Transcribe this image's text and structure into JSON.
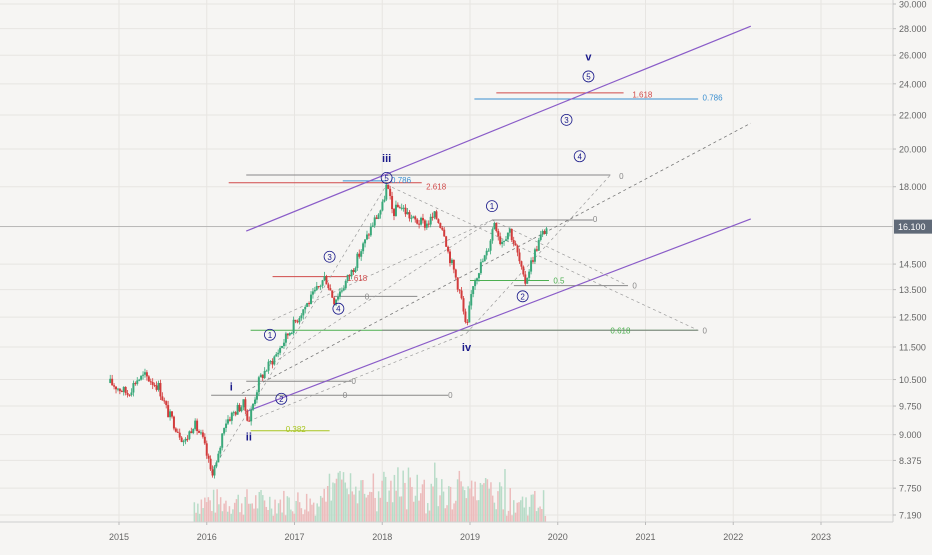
{
  "chart_data": {
    "type": "candlestick",
    "x_axis": {
      "labels": [
        "2015",
        "2016",
        "2017",
        "2018",
        "2019",
        "2020",
        "2021",
        "2022",
        "2023"
      ],
      "range": [
        2014.8,
        2023.3
      ]
    },
    "y_axis": {
      "scale": "log",
      "labels": [
        "30.000",
        "28.000",
        "26.000",
        "24.000",
        "22.000",
        "20.000",
        "18.000",
        "16.100",
        "14.500",
        "13.500",
        "12.500",
        "11.500",
        "10.500",
        "9.750",
        "9.000",
        "8.375",
        "7.750",
        "7.190"
      ],
      "range": [
        7.0,
        30.5
      ],
      "current_price": "16.100"
    },
    "price_path": [
      [
        2014.9,
        10.4
      ],
      [
        2015.1,
        10.1
      ],
      [
        2015.2,
        10.5
      ],
      [
        2015.3,
        10.6
      ],
      [
        2015.45,
        10.3
      ],
      [
        2015.55,
        9.6
      ],
      [
        2015.65,
        9.2
      ],
      [
        2015.75,
        8.8
      ],
      [
        2015.85,
        9.3
      ],
      [
        2015.95,
        8.9
      ],
      [
        2016.05,
        8.1
      ],
      [
        2016.12,
        8.3
      ],
      [
        2016.2,
        9.3
      ],
      [
        2016.28,
        9.5
      ],
      [
        2016.36,
        9.7
      ],
      [
        2016.42,
        9.8
      ],
      [
        2016.48,
        9.35
      ],
      [
        2016.6,
        10.5
      ],
      [
        2016.7,
        10.9
      ],
      [
        2016.8,
        11.3
      ],
      [
        2016.9,
        11.8
      ],
      [
        2017.0,
        12.3
      ],
      [
        2017.1,
        12.8
      ],
      [
        2017.2,
        13.2
      ],
      [
        2017.35,
        14.0
      ],
      [
        2017.45,
        13.1
      ],
      [
        2017.55,
        13.6
      ],
      [
        2017.65,
        14.2
      ],
      [
        2017.8,
        15.4
      ],
      [
        2017.9,
        16.3
      ],
      [
        2018.0,
        17.0
      ],
      [
        2018.05,
        18.1
      ],
      [
        2018.12,
        16.7
      ],
      [
        2018.2,
        17.1
      ],
      [
        2018.35,
        16.4
      ],
      [
        2018.5,
        16.2
      ],
      [
        2018.6,
        16.6
      ],
      [
        2018.7,
        16.0
      ],
      [
        2018.75,
        15.0
      ],
      [
        2018.82,
        14.2
      ],
      [
        2018.9,
        13.2
      ],
      [
        2018.96,
        11.95
      ],
      [
        2019.03,
        13.7
      ],
      [
        2019.1,
        14.3
      ],
      [
        2019.2,
        15.0
      ],
      [
        2019.28,
        16.4
      ],
      [
        2019.35,
        15.4
      ],
      [
        2019.45,
        16.0
      ],
      [
        2019.55,
        14.8
      ],
      [
        2019.62,
        13.7
      ],
      [
        2019.7,
        14.6
      ],
      [
        2019.8,
        15.6
      ],
      [
        2019.88,
        16.1
      ]
    ],
    "annotations": [
      {
        "text": "i",
        "x": 2016.28,
        "y": 10.3,
        "color": "#1a1a8a"
      },
      {
        "text": "ii",
        "x": 2016.48,
        "y": 8.95,
        "color": "#1a1a8a"
      },
      {
        "text": "iii",
        "x": 2018.05,
        "y": 19.5,
        "color": "#1a1a8a"
      },
      {
        "text": "iv",
        "x": 2018.96,
        "y": 11.5,
        "color": "#1a1a8a"
      },
      {
        "text": "v",
        "x": 2020.35,
        "y": 25.9,
        "color": "#1a1a8a"
      },
      {
        "text": "1",
        "x": 2016.72,
        "y": 11.9,
        "color": "#1a1a8a",
        "circled": true
      },
      {
        "text": "2",
        "x": 2016.85,
        "y": 9.95,
        "color": "#1a1a8a",
        "circled": true
      },
      {
        "text": "3",
        "x": 2017.4,
        "y": 14.8,
        "color": "#1a1a8a",
        "circled": true
      },
      {
        "text": "4",
        "x": 2017.5,
        "y": 12.8,
        "color": "#1a1a8a",
        "circled": true
      },
      {
        "text": "5",
        "x": 2018.05,
        "y": 18.45,
        "color": "#1a1a8a",
        "circled": true
      },
      {
        "text": "1",
        "x": 2019.25,
        "y": 17.05,
        "color": "#1a1a8a",
        "circled": true
      },
      {
        "text": "2",
        "x": 2019.6,
        "y": 13.25,
        "color": "#1a1a8a",
        "circled": true
      },
      {
        "text": "3",
        "x": 2020.1,
        "y": 21.7,
        "color": "#1a1a8a",
        "circled": true
      },
      {
        "text": "4",
        "x": 2020.25,
        "y": 19.6,
        "color": "#1a1a8a",
        "circled": true
      },
      {
        "text": "5",
        "x": 2020.35,
        "y": 24.5,
        "color": "#1a1a8a",
        "circled": true
      }
    ],
    "fib_labels": [
      {
        "text": "1.618",
        "x": 2020.85,
        "y": 23.3,
        "color": "#d04a4a"
      },
      {
        "text": "0.786",
        "x": 2021.65,
        "y": 23.1,
        "color": "#3a8fd0"
      },
      {
        "text": "0.786",
        "x": 2018.1,
        "y": 18.35,
        "color": "#3a8fd0"
      },
      {
        "text": "2.618",
        "x": 2018.5,
        "y": 18.0,
        "color": "#d04a4a"
      },
      {
        "text": "1.618",
        "x": 2017.6,
        "y": 13.95,
        "color": "#d04a4a"
      },
      {
        "text": "0.5",
        "x": 2019.95,
        "y": 13.85,
        "color": "#4caf50"
      },
      {
        "text": "0.618",
        "x": 2020.6,
        "y": 12.05,
        "color": "#4caf50"
      },
      {
        "text": "0.382",
        "x": 2016.9,
        "y": 9.15,
        "color": "#a8c520"
      },
      {
        "text": "0",
        "x": 2020.7,
        "y": 18.55,
        "color": "#888"
      },
      {
        "text": "0",
        "x": 2020.4,
        "y": 16.45,
        "color": "#888"
      },
      {
        "text": "0",
        "x": 2020.85,
        "y": 13.65,
        "color": "#888"
      },
      {
        "text": "0",
        "x": 2021.65,
        "y": 12.05,
        "color": "#888"
      },
      {
        "text": "0",
        "x": 2017.8,
        "y": 13.25,
        "color": "#888"
      },
      {
        "text": "0",
        "x": 2017.65,
        "y": 10.45,
        "color": "#888"
      },
      {
        "text": "0",
        "x": 2017.55,
        "y": 10.05,
        "color": "#888"
      },
      {
        "text": "0",
        "x": 2018.75,
        "y": 10.05,
        "color": "#888"
      }
    ],
    "channel": {
      "upper": [
        [
          2016.45,
          15.9
        ],
        [
          2022.2,
          28.2
        ]
      ],
      "middle": [
        [
          2016.4,
          10.1
        ],
        [
          2022.2,
          21.5
        ]
      ],
      "lower": [
        [
          2016.45,
          9.6
        ],
        [
          2022.2,
          16.45
        ]
      ],
      "color": "#8a5cc8"
    },
    "fib_lines": [
      {
        "from": [
          2019.05,
          23.0
        ],
        "to": [
          2021.6,
          23.0
        ],
        "color": "#3a8fd0"
      },
      {
        "from": [
          2019.3,
          23.4
        ],
        "to": [
          2020.75,
          23.4
        ],
        "color": "#d04a4a"
      },
      {
        "from": [
          2016.25,
          18.2
        ],
        "to": [
          2018.45,
          18.2
        ],
        "color": "#d04a4a"
      },
      {
        "from": [
          2016.45,
          18.6
        ],
        "to": [
          2020.6,
          18.6
        ],
        "color": "#888"
      },
      {
        "from": [
          2017.55,
          18.3
        ],
        "to": [
          2018.05,
          18.3
        ],
        "color": "#3a8fd0"
      },
      {
        "from": [
          2019.25,
          16.4
        ],
        "to": [
          2020.4,
          16.4
        ],
        "color": "#888"
      },
      {
        "from": [
          2016.75,
          14.0
        ],
        "to": [
          2017.6,
          14.0
        ],
        "color": "#d04a4a"
      },
      {
        "from": [
          2019.0,
          13.85
        ],
        "to": [
          2019.9,
          13.85
        ],
        "color": "#4caf50"
      },
      {
        "from": [
          2019.5,
          13.65
        ],
        "to": [
          2020.8,
          13.65
        ],
        "color": "#888"
      },
      {
        "from": [
          2017.45,
          13.25
        ],
        "to": [
          2018.4,
          13.25
        ],
        "color": "#888"
      },
      {
        "from": [
          2016.5,
          12.05
        ],
        "to": [
          2021.6,
          12.05
        ],
        "color": "#4caf50"
      },
      {
        "from": [
          2018.0,
          12.05
        ],
        "to": [
          2021.6,
          12.05
        ],
        "color": "#888"
      },
      {
        "from": [
          2016.45,
          10.45
        ],
        "to": [
          2017.65,
          10.45
        ],
        "color": "#888"
      },
      {
        "from": [
          2016.05,
          10.05
        ],
        "to": [
          2018.75,
          10.05
        ],
        "color": "#888"
      },
      {
        "from": [
          2016.5,
          9.1
        ],
        "to": [
          2017.4,
          9.1
        ],
        "color": "#a8c520"
      }
    ],
    "colors": {
      "up": "#3aa87a",
      "down": "#d23c3c",
      "channel": "#8a5cc8"
    },
    "grid": true,
    "legend": "none"
  }
}
